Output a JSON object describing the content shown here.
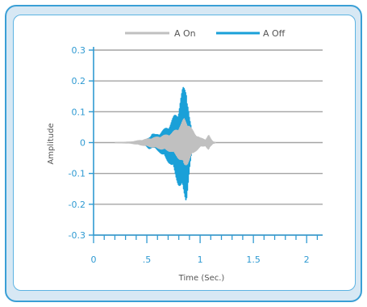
{
  "chart_data": {
    "type": "line",
    "xlabel": "Time (Sec.)",
    "ylabel": "Amplitude",
    "xlim": [
      0,
      2.15
    ],
    "ylim": [
      -0.3,
      0.3
    ],
    "x_ticks": [
      {
        "value": 0,
        "label": "0"
      },
      {
        "value": 0.5,
        "label": ".5"
      },
      {
        "value": 1,
        "label": "1"
      },
      {
        "value": 1.5,
        "label": "1.5"
      },
      {
        "value": 2,
        "label": "2"
      }
    ],
    "y_ticks": [
      {
        "value": 0.3,
        "label": "0.3"
      },
      {
        "value": 0.2,
        "label": "0.2"
      },
      {
        "value": 0.1,
        "label": "0.1"
      },
      {
        "value": 0,
        "label": "0"
      },
      {
        "value": -0.1,
        "label": "-0.1"
      },
      {
        "value": -0.2,
        "label": "-0.2"
      },
      {
        "value": -0.3,
        "label": "-0.3"
      }
    ],
    "grid": true,
    "legend_position": "top",
    "series": [
      {
        "name": "A On",
        "color": "#c0c0c0",
        "envelope": {
          "x": [
            0.2,
            0.35,
            0.45,
            0.55,
            0.62,
            0.68,
            0.73,
            0.78,
            0.82,
            0.85,
            0.88,
            0.91,
            0.95,
            1.0,
            1.05,
            1.08,
            1.1,
            1.12,
            1.15
          ],
          "upper": [
            0.0,
            0.002,
            0.008,
            0.015,
            0.02,
            0.025,
            0.03,
            0.045,
            0.06,
            0.08,
            0.07,
            0.05,
            0.03,
            0.015,
            0.01,
            0.025,
            0.012,
            0.003,
            0.0
          ],
          "lower": [
            0.0,
            -0.002,
            -0.008,
            -0.015,
            -0.02,
            -0.025,
            -0.03,
            -0.045,
            -0.06,
            -0.08,
            -0.07,
            -0.05,
            -0.03,
            -0.015,
            -0.01,
            -0.025,
            -0.012,
            -0.003,
            0.0
          ]
        }
      },
      {
        "name": "A Off",
        "color": "#1aa0d8",
        "envelope": {
          "x": [
            0.45,
            0.52,
            0.55,
            0.58,
            0.62,
            0.67,
            0.72,
            0.76,
            0.8,
            0.84,
            0.87,
            0.9,
            0.93,
            0.96
          ],
          "upper": [
            0.0,
            0.015,
            0.03,
            0.025,
            0.03,
            0.045,
            0.06,
            0.09,
            0.11,
            0.18,
            0.19,
            0.08,
            0.02,
            0.0
          ],
          "lower": [
            0.0,
            -0.02,
            -0.015,
            -0.02,
            -0.03,
            -0.05,
            -0.07,
            -0.1,
            -0.14,
            -0.17,
            -0.19,
            -0.09,
            -0.02,
            0.0
          ]
        }
      }
    ]
  }
}
